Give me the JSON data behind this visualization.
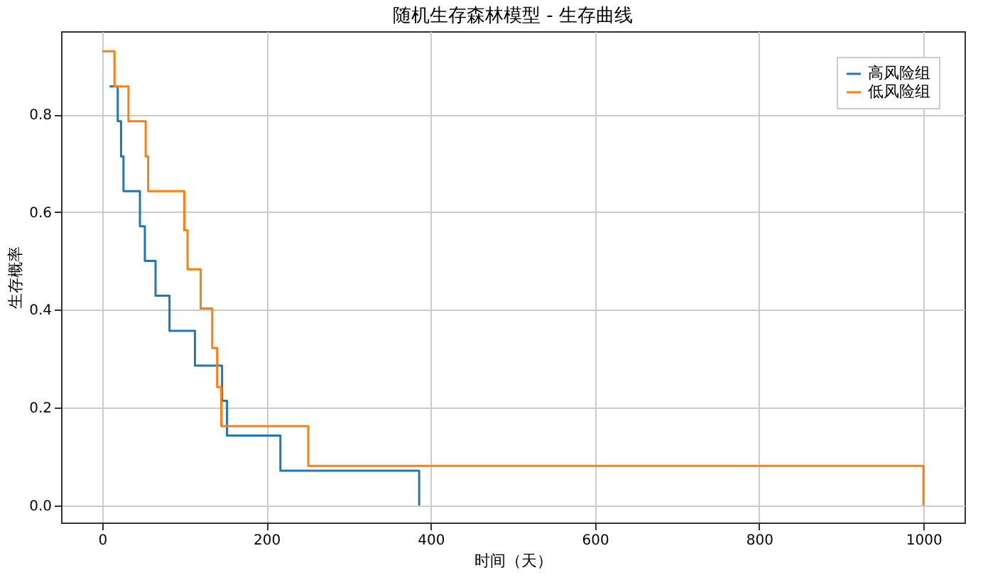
{
  "chart_data": {
    "type": "step",
    "title": "随机生存森林模型 - 生存曲线",
    "xlabel": "时间（天）",
    "ylabel": "生存概率",
    "xlim": [
      -50,
      1050
    ],
    "ylim": [
      -0.035,
      0.97
    ],
    "xticks": [
      0,
      200,
      400,
      600,
      800,
      1000
    ],
    "yticks": [
      {
        "value": 0,
        "label": "0.0"
      },
      0.2,
      0.4,
      0.6,
      0.8
    ],
    "grid": true,
    "legend": "top right",
    "series": [
      {
        "name": "高风险组",
        "color": "#1f77b4",
        "x": [
          9,
          19,
          23,
          26,
          46,
          52,
          65,
          82,
          113,
          146,
          152,
          217,
          386
        ],
        "values": [
          0.857,
          0.786,
          0.714,
          0.643,
          0.571,
          0.5,
          0.429,
          0.357,
          0.286,
          0.214,
          0.143,
          0.071,
          0.0
        ]
      },
      {
        "name": "低风险组",
        "color": "#ff7f0e",
        "x": [
          0,
          15,
          32,
          53,
          56,
          100,
          104,
          120,
          134,
          140,
          145,
          251,
          1000
        ],
        "values": [
          0.929,
          0.857,
          0.786,
          0.714,
          0.643,
          0.563,
          0.483,
          0.403,
          0.322,
          0.242,
          0.162,
          0.081,
          0.0
        ]
      }
    ]
  }
}
